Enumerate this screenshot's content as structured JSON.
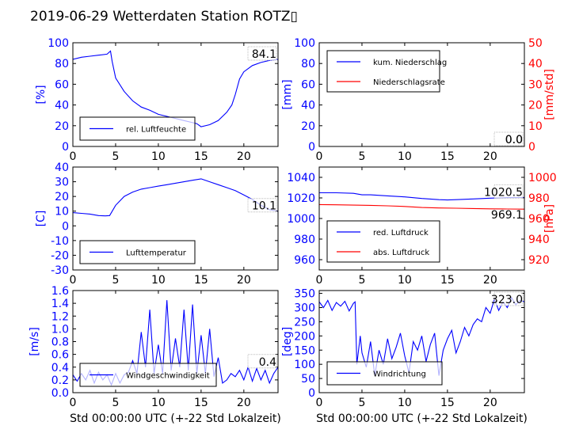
{
  "title": "2019-06-29 Wetterdaten Station ROTZ▯",
  "colors": {
    "primary": "#0000ff",
    "secondary": "#ff0000",
    "axis": "#000000"
  },
  "chart_data": [
    {
      "id": "humidity",
      "type": "line",
      "ylabel": "[%]",
      "ylim": [
        0,
        100
      ],
      "yticks": [
        0,
        20,
        40,
        60,
        80,
        100
      ],
      "xlim": [
        0,
        24
      ],
      "xticks": [
        0,
        5,
        10,
        15,
        20
      ],
      "current_value": "84.1",
      "legend_position": "lower-center",
      "series": [
        {
          "name": "rel. Luftfeuchte",
          "color": "#0000ff",
          "axis": "left",
          "x": [
            0,
            1,
            2,
            3,
            4,
            4.4,
            4.6,
            5,
            6,
            7,
            8,
            9,
            10,
            11,
            12,
            13,
            14,
            14.5,
            15,
            16,
            17,
            18,
            18.6,
            19,
            19.5,
            20,
            21,
            22,
            23,
            24
          ],
          "y": [
            84,
            86,
            87,
            88,
            89,
            92,
            82,
            66,
            53,
            44,
            38,
            35,
            31,
            29,
            27,
            25,
            23,
            22,
            19,
            21,
            25,
            33,
            40,
            50,
            65,
            72,
            78,
            81,
            83,
            84
          ]
        }
      ]
    },
    {
      "id": "precipitation",
      "type": "line",
      "ylabel": "[mm]",
      "ylim": [
        0,
        100
      ],
      "yticks": [
        0,
        20,
        40,
        60,
        80,
        100
      ],
      "y2label": "[mm/std]",
      "y2lim": [
        0,
        50
      ],
      "y2ticks": [
        0,
        10,
        20,
        30,
        40,
        50
      ],
      "xlim": [
        0,
        24
      ],
      "xticks": [
        0,
        5,
        10,
        15,
        20
      ],
      "current_value": "0.0",
      "current_value2": "0.0",
      "legend_position": "upper-left",
      "series": [
        {
          "name": "kum. Niederschlag",
          "color": "#0000ff",
          "axis": "left",
          "x": [
            0,
            24
          ],
          "y": [
            0,
            0
          ]
        },
        {
          "name": "Niederschlagsrate",
          "color": "#ff0000",
          "axis": "right",
          "x": [
            0,
            24
          ],
          "y": [
            0,
            0
          ]
        }
      ]
    },
    {
      "id": "temperature",
      "type": "line",
      "ylabel": "[C]",
      "ylim": [
        -30,
        40
      ],
      "yticks": [
        -30,
        -20,
        -10,
        0,
        10,
        20,
        30,
        40
      ],
      "xlim": [
        0,
        24
      ],
      "xticks": [
        0,
        5,
        10,
        15,
        20
      ],
      "current_value": "10.1",
      "legend_position": "lower-center",
      "series": [
        {
          "name": "Lufttemperatur",
          "color": "#0000ff",
          "axis": "left",
          "x": [
            0,
            1,
            2,
            3,
            3.8,
            4.3,
            5,
            6,
            7,
            8,
            9,
            10,
            11,
            12,
            13,
            14,
            15,
            16,
            17,
            18,
            19,
            20,
            21,
            22,
            23,
            24
          ],
          "y": [
            9,
            8.5,
            8,
            7,
            6.8,
            7,
            14,
            20,
            23,
            25,
            26,
            27,
            28,
            29,
            30,
            31,
            32,
            30,
            28,
            26,
            24,
            21,
            18,
            14,
            11,
            10
          ]
        }
      ]
    },
    {
      "id": "pressure",
      "type": "line",
      "ylabel": "",
      "ylim": [
        950,
        1050
      ],
      "yticks": [
        960,
        980,
        1000,
        1020,
        1040
      ],
      "y2label": "[hPa]",
      "y2lim": [
        910,
        1010
      ],
      "y2ticks": [
        920,
        940,
        960,
        980,
        1000
      ],
      "xlim": [
        0,
        24
      ],
      "xticks": [
        0,
        5,
        10,
        15,
        20
      ],
      "current_value": "1020.5",
      "current_value2": "969.1",
      "legend_position": "lower-left",
      "series": [
        {
          "name": "red. Luftdruck",
          "color": "#0000ff",
          "axis": "left",
          "x": [
            0,
            2,
            4,
            5,
            6,
            8,
            10,
            12,
            14,
            15,
            16,
            18,
            20,
            22,
            24
          ],
          "y": [
            1025,
            1025,
            1024.5,
            1023,
            1023,
            1022,
            1021,
            1019.5,
            1018.3,
            1018,
            1018.3,
            1019,
            1019.8,
            1020.3,
            1020.5
          ]
        },
        {
          "name": "abs. Luftdruck",
          "color": "#ff0000",
          "axis": "right",
          "x": [
            0,
            2,
            4,
            6,
            8,
            10,
            12,
            14,
            16,
            18,
            20,
            22,
            24
          ],
          "y": [
            973.5,
            973.3,
            973,
            972.8,
            972.3,
            971.7,
            970.7,
            970.2,
            970,
            969.7,
            969.4,
            969.2,
            969.1
          ]
        }
      ]
    },
    {
      "id": "wind_speed",
      "type": "line",
      "ylabel": "[m/s]",
      "ylim": [
        0,
        1.6
      ],
      "yticks": [
        0.0,
        0.2,
        0.4,
        0.6,
        0.8,
        1.0,
        1.2,
        1.4,
        1.6
      ],
      "xlim": [
        0,
        24
      ],
      "xticks": [
        0,
        5,
        10,
        15,
        20
      ],
      "current_value": "0.4",
      "legend_position": "lower-center",
      "series": [
        {
          "name": "Windgeschwindigkeit",
          "color": "#0000ff",
          "axis": "left",
          "x": [
            0,
            0.5,
            1,
            1.5,
            2,
            2.5,
            3,
            3.5,
            4,
            4.5,
            5,
            5.5,
            6,
            6.5,
            7,
            7.5,
            8,
            8.5,
            9,
            9.5,
            10,
            10.5,
            11,
            11.5,
            12,
            12.5,
            13,
            13.5,
            14,
            14.5,
            15,
            15.5,
            16,
            16.5,
            17,
            17.5,
            18,
            18.5,
            19,
            19.5,
            20,
            20.5,
            21,
            21.5,
            22,
            22.5,
            23,
            23.5,
            24
          ],
          "y": [
            0.28,
            0.18,
            0.3,
            0.2,
            0.35,
            0.15,
            0.32,
            0.2,
            0.28,
            0.12,
            0.3,
            0.15,
            0.28,
            0.32,
            0.5,
            0.3,
            0.95,
            0.4,
            1.3,
            0.3,
            0.75,
            0.3,
            1.45,
            0.35,
            0.85,
            0.4,
            1.3,
            0.35,
            1.38,
            0.3,
            0.9,
            0.3,
            1.0,
            0.25,
            0.55,
            0.15,
            0.2,
            0.3,
            0.25,
            0.35,
            0.2,
            0.4,
            0.18,
            0.38,
            0.2,
            0.35,
            0.15,
            0.3,
            0.4
          ]
        }
      ]
    },
    {
      "id": "wind_direction",
      "type": "line",
      "ylabel": "[deg]",
      "ylim": [
        0,
        360
      ],
      "yticks": [
        0,
        50,
        100,
        150,
        200,
        250,
        300,
        350
      ],
      "xlim": [
        0,
        24
      ],
      "xticks": [
        0,
        5,
        10,
        15,
        20
      ],
      "current_value": "323.0",
      "legend_position": "lower-left",
      "series": [
        {
          "name": "Windrichtung",
          "color": "#0000ff",
          "axis": "left",
          "x": [
            0,
            0.5,
            1,
            1.5,
            2,
            2.5,
            3,
            3.5,
            4,
            4.2,
            4.4,
            4.8,
            5,
            5.5,
            6,
            6.5,
            7,
            7.5,
            8,
            8.5,
            9,
            9.5,
            10,
            10.5,
            11,
            11.5,
            12,
            12.5,
            13,
            13.5,
            14,
            14.5,
            15,
            15.5,
            16,
            16.5,
            17,
            17.5,
            18,
            18.5,
            19,
            19.5,
            20,
            20.5,
            21,
            21.5,
            22,
            22.5,
            23,
            23.5,
            24
          ],
          "y": [
            320,
            300,
            325,
            290,
            318,
            305,
            322,
            288,
            315,
            320,
            100,
            200,
            140,
            90,
            180,
            60,
            150,
            100,
            190,
            120,
            160,
            210,
            130,
            70,
            180,
            150,
            200,
            110,
            170,
            210,
            60,
            150,
            190,
            220,
            140,
            180,
            230,
            200,
            240,
            260,
            250,
            300,
            280,
            330,
            290,
            320,
            300,
            335,
            310,
            325,
            320
          ]
        }
      ]
    }
  ],
  "xlabel_bottom": "Std 00:00:00 UTC (+-22 Std Lokalzeit)"
}
